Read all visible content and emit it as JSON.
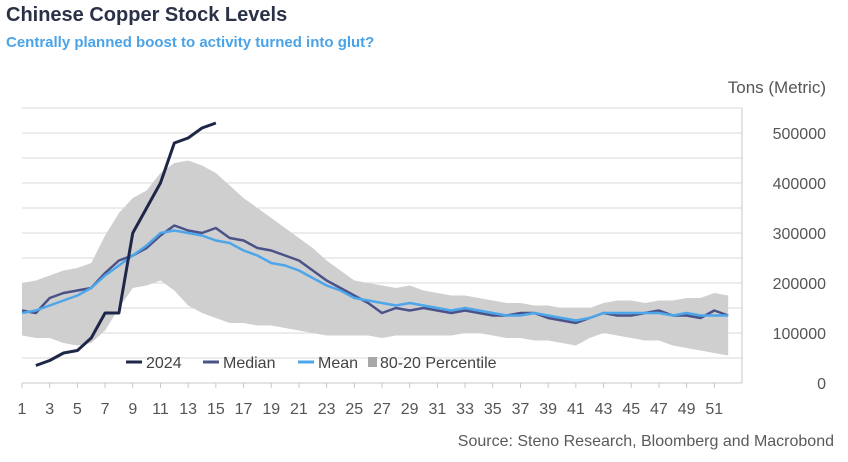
{
  "chart_data": {
    "type": "line",
    "title": "Chinese Copper Stock Levels",
    "subtitle": "Centrally planned boost to activity turned into glut?",
    "ylabel": "Tons (Metric)",
    "source": "Source: Steno Research, Bloomberg and Macrobond",
    "ylim": [
      0,
      550000
    ],
    "yticks": [
      0,
      100000,
      200000,
      300000,
      400000,
      500000
    ],
    "xlim": [
      1,
      53
    ],
    "xticks": [
      1,
      3,
      5,
      7,
      9,
      11,
      13,
      15,
      17,
      19,
      21,
      23,
      25,
      27,
      29,
      31,
      33,
      35,
      37,
      39,
      41,
      43,
      45,
      47,
      49,
      51
    ],
    "grid": true,
    "legend_position": "bottom-left",
    "colors": {
      "y2024": "#1f2748",
      "median": "#4a5288",
      "mean": "#4ea6ea",
      "band": "#cfcfcf",
      "grid": "#d9d9d9"
    },
    "series": [
      {
        "name": "2024",
        "color": "#1f2748",
        "x": [
          2,
          3,
          4,
          5,
          6,
          7,
          8,
          9,
          10,
          11,
          12,
          13,
          14,
          15
        ],
        "y": [
          35000,
          45000,
          60000,
          65000,
          90000,
          140000,
          140000,
          300000,
          350000,
          400000,
          480000,
          490000,
          510000,
          520000
        ]
      },
      {
        "name": "Median",
        "color": "#4a5288",
        "x": [
          1,
          2,
          3,
          4,
          5,
          6,
          7,
          8,
          9,
          10,
          11,
          12,
          13,
          14,
          15,
          16,
          17,
          18,
          19,
          20,
          21,
          22,
          23,
          24,
          25,
          26,
          27,
          28,
          29,
          30,
          31,
          32,
          33,
          34,
          35,
          36,
          37,
          38,
          39,
          40,
          41,
          42,
          43,
          44,
          45,
          46,
          47,
          48,
          49,
          50,
          51,
          52
        ],
        "y": [
          145000,
          140000,
          170000,
          180000,
          185000,
          190000,
          220000,
          245000,
          255000,
          270000,
          295000,
          315000,
          305000,
          300000,
          310000,
          290000,
          285000,
          270000,
          265000,
          255000,
          245000,
          225000,
          205000,
          190000,
          175000,
          160000,
          140000,
          150000,
          145000,
          150000,
          145000,
          140000,
          145000,
          140000,
          135000,
          135000,
          140000,
          140000,
          130000,
          125000,
          120000,
          130000,
          140000,
          135000,
          135000,
          140000,
          145000,
          135000,
          135000,
          130000,
          145000,
          135000
        ]
      },
      {
        "name": "Mean",
        "color": "#4ea6ea",
        "x": [
          1,
          2,
          3,
          4,
          5,
          6,
          7,
          8,
          9,
          10,
          11,
          12,
          13,
          14,
          15,
          16,
          17,
          18,
          19,
          20,
          21,
          22,
          23,
          24,
          25,
          26,
          27,
          28,
          29,
          30,
          31,
          32,
          33,
          34,
          35,
          36,
          37,
          38,
          39,
          40,
          41,
          42,
          43,
          44,
          45,
          46,
          47,
          48,
          49,
          50,
          51,
          52
        ],
        "y": [
          140000,
          145000,
          155000,
          165000,
          175000,
          190000,
          215000,
          235000,
          255000,
          275000,
          300000,
          305000,
          300000,
          295000,
          285000,
          280000,
          265000,
          255000,
          240000,
          235000,
          225000,
          210000,
          195000,
          185000,
          170000,
          165000,
          160000,
          155000,
          160000,
          155000,
          150000,
          145000,
          150000,
          145000,
          140000,
          135000,
          135000,
          140000,
          135000,
          130000,
          125000,
          130000,
          140000,
          140000,
          140000,
          140000,
          140000,
          135000,
          140000,
          135000,
          135000,
          135000
        ]
      }
    ],
    "band": {
      "name": "80-20 Percentile",
      "color": "#cfcfcf",
      "x": [
        1,
        2,
        3,
        4,
        5,
        6,
        7,
        8,
        9,
        10,
        11,
        12,
        13,
        14,
        15,
        16,
        17,
        18,
        19,
        20,
        21,
        22,
        23,
        24,
        25,
        26,
        27,
        28,
        29,
        30,
        31,
        32,
        33,
        34,
        35,
        36,
        37,
        38,
        39,
        40,
        41,
        42,
        43,
        44,
        45,
        46,
        47,
        48,
        49,
        50,
        51,
        52
      ],
      "upper": [
        200000,
        205000,
        215000,
        225000,
        230000,
        240000,
        295000,
        340000,
        370000,
        385000,
        420000,
        440000,
        445000,
        435000,
        420000,
        395000,
        370000,
        350000,
        330000,
        310000,
        290000,
        270000,
        245000,
        225000,
        205000,
        200000,
        195000,
        190000,
        195000,
        185000,
        180000,
        175000,
        175000,
        170000,
        165000,
        160000,
        160000,
        155000,
        155000,
        150000,
        150000,
        150000,
        160000,
        165000,
        165000,
        160000,
        165000,
        165000,
        170000,
        170000,
        180000,
        175000
      ],
      "lower": [
        95000,
        90000,
        90000,
        80000,
        75000,
        80000,
        105000,
        150000,
        190000,
        195000,
        205000,
        185000,
        155000,
        140000,
        130000,
        120000,
        120000,
        115000,
        115000,
        110000,
        105000,
        100000,
        95000,
        95000,
        95000,
        95000,
        90000,
        95000,
        95000,
        95000,
        95000,
        95000,
        100000,
        100000,
        95000,
        90000,
        90000,
        85000,
        85000,
        80000,
        75000,
        90000,
        100000,
        95000,
        90000,
        85000,
        85000,
        75000,
        70000,
        65000,
        60000,
        55000
      ]
    },
    "legend": [
      "2024",
      "Median",
      "Mean",
      "80-20 Percentile"
    ]
  }
}
